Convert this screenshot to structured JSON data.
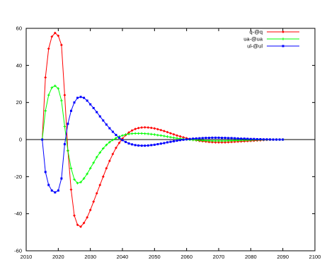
{
  "chart_data": {
    "type": "line",
    "xlim": [
      2010,
      2100
    ],
    "ylim": [
      -60,
      60
    ],
    "x_ticks": [
      2010,
      2020,
      2030,
      2040,
      2050,
      2060,
      2070,
      2080,
      2090,
      2100
    ],
    "y_ticks": [
      -60,
      -40,
      -20,
      0,
      20,
      40,
      60
    ],
    "grid": false,
    "zero_line": true,
    "legend_position": "top-right",
    "x_start": 2015,
    "x_step": 1,
    "series": [
      {
        "name": "q-@q",
        "color": "#ff0000",
        "marker": "diamond",
        "values": [
          0,
          33.5,
          49,
          55.5,
          57.5,
          56,
          51,
          24,
          -6,
          -27,
          -41,
          -46,
          -47,
          -45,
          -42,
          -38,
          -33.5,
          -29,
          -24.5,
          -20,
          -15.5,
          -11.5,
          -7.8,
          -4.5,
          -1.8,
          0.5,
          2.4,
          3.8,
          4.9,
          5.7,
          6.2,
          6.5,
          6.6,
          6.5,
          6.3,
          6,
          5.6,
          5.1,
          4.6,
          4,
          3.4,
          2.8,
          2.2,
          1.7,
          1.2,
          0.7,
          0.3,
          -0.1,
          -0.4,
          -0.7,
          -0.9,
          -1.1,
          -1.3,
          -1.4,
          -1.5,
          -1.5,
          -1.5,
          -1.5,
          -1.4,
          -1.3,
          -1.2,
          -1.1,
          -1,
          -0.9,
          -0.8,
          -0.7,
          -0.6,
          -0.5,
          -0.4,
          -0.3,
          -0.2,
          -0.1,
          -0.05,
          0,
          0,
          0
        ]
      },
      {
        "name": "ua-@ua",
        "color": "#00ff00",
        "marker": "plus",
        "values": [
          0,
          15.5,
          24,
          28,
          29,
          27.5,
          21,
          7,
          -6,
          -15.5,
          -21.5,
          -23.5,
          -23,
          -21,
          -18.5,
          -15.5,
          -12.5,
          -9.5,
          -7,
          -4.8,
          -2.9,
          -1.4,
          -0.2,
          0.8,
          1.6,
          2.2,
          2.7,
          3,
          3.2,
          3.3,
          3.3,
          3.3,
          3.2,
          3.1,
          2.9,
          2.7,
          2.4,
          2.2,
          1.9,
          1.6,
          1.3,
          1,
          0.7,
          0.5,
          0.3,
          0.1,
          -0.1,
          -0.2,
          -0.3,
          -0.4,
          -0.5,
          -0.6,
          -0.6,
          -0.7,
          -0.7,
          -0.7,
          -0.7,
          -0.7,
          -0.6,
          -0.6,
          -0.5,
          -0.5,
          -0.4,
          -0.4,
          -0.3,
          -0.3,
          -0.2,
          -0.2,
          -0.1,
          -0.1,
          -0.05,
          0,
          0,
          0,
          0,
          0
        ]
      },
      {
        "name": "ul-@ul",
        "color": "#0000ff",
        "marker": "square",
        "values": [
          0,
          -17.5,
          -24.5,
          -27.5,
          -28.5,
          -27.5,
          -21,
          -2.5,
          8.5,
          15.5,
          20,
          22.5,
          23,
          22.5,
          21,
          19,
          17,
          14.8,
          12.5,
          10.3,
          8.1,
          6.1,
          4.2,
          2.5,
          1,
          -0.3,
          -1.3,
          -2.1,
          -2.6,
          -3,
          -3.2,
          -3.3,
          -3.3,
          -3.2,
          -3,
          -2.8,
          -2.5,
          -2.2,
          -1.9,
          -1.5,
          -1.2,
          -0.9,
          -0.6,
          -0.3,
          -0.1,
          0.1,
          0.3,
          0.5,
          0.6,
          0.7,
          0.8,
          0.9,
          0.9,
          1,
          1,
          1,
          0.9,
          0.9,
          0.8,
          0.8,
          0.7,
          0.6,
          0.5,
          0.5,
          0.4,
          0.3,
          0.3,
          0.2,
          0.2,
          0.1,
          0.1,
          0.05,
          0,
          0,
          0,
          0
        ]
      }
    ]
  }
}
